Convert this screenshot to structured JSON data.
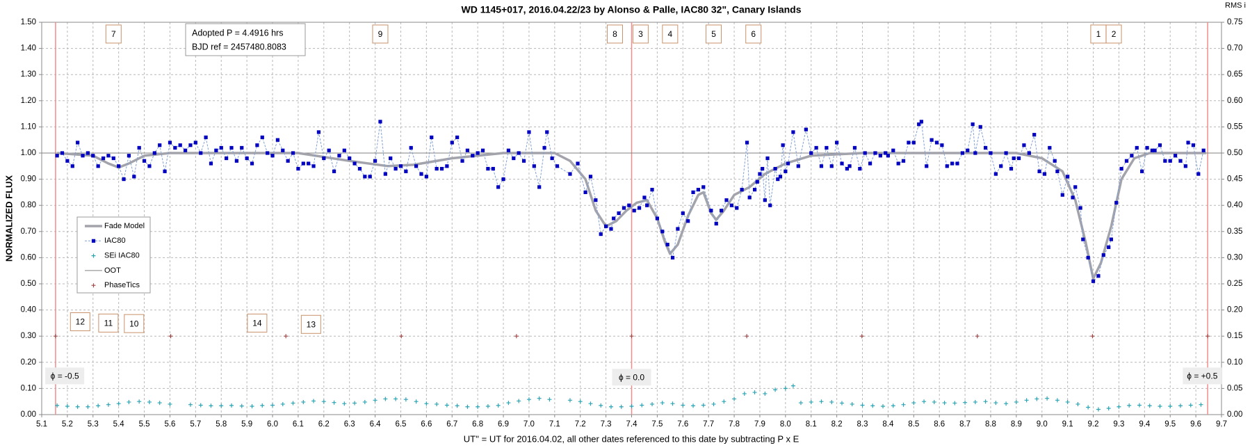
{
  "chart_data": {
    "type": "line",
    "title": "WD 1145+017, 2016.04.22/23 by Alonso & Palle, IAC80 32\", Canary Islands",
    "x_label": "UT'' = UT for 2016.04.02, all other dates referenced to this date by subtracting P x E",
    "y_label": "NORMALIZED FLUX",
    "y2_label": "RMS i",
    "xlim": [
      5.1,
      9.7
    ],
    "xticks": [
      5.1,
      5.2,
      5.3,
      5.4,
      5.5,
      5.6,
      5.7,
      5.8,
      5.9,
      {
        "value": 6,
        "label": "6.0"
      },
      6.1,
      6.2,
      6.3,
      6.4,
      6.5,
      6.6,
      6.7,
      6.8,
      6.9,
      {
        "value": 7,
        "label": "7.0"
      },
      7.1,
      7.2,
      7.3,
      7.4,
      7.5,
      7.6,
      7.7,
      7.8,
      7.9,
      {
        "value": 8,
        "label": "8.0"
      },
      8.1,
      8.2,
      8.3,
      8.4,
      8.5,
      8.6,
      8.7,
      8.8,
      8.9,
      {
        "value": 9,
        "label": "9.0"
      },
      9.1,
      9.2,
      9.3,
      9.4,
      9.5,
      9.6,
      9.7
    ],
    "ylim": [
      0,
      1.5
    ],
    "yticks": [
      {
        "value": 0,
        "label": "0.00"
      },
      {
        "value": 0.1,
        "label": "0.10"
      },
      {
        "value": 0.2,
        "label": "0.20"
      },
      {
        "value": 0.3,
        "label": "0.30"
      },
      {
        "value": 0.4,
        "label": "0.40"
      },
      {
        "value": 0.5,
        "label": "0.50"
      },
      {
        "value": 0.6,
        "label": "0.60"
      },
      {
        "value": 0.7,
        "label": "0.70"
      },
      {
        "value": 0.8,
        "label": "0.80"
      },
      {
        "value": 0.9,
        "label": "0.90"
      },
      {
        "value": 1.0,
        "label": "1.00"
      },
      {
        "value": 1.1,
        "label": "1.10"
      },
      {
        "value": 1.2,
        "label": "1.20"
      },
      {
        "value": 1.3,
        "label": "1.30"
      },
      {
        "value": 1.4,
        "label": "1.40"
      },
      {
        "value": 1.5,
        "label": "1.50"
      }
    ],
    "y2lim": [
      0,
      0.75
    ],
    "y2ticks": [
      {
        "value": 0,
        "label": "0.00"
      },
      0.05,
      {
        "value": 0.1,
        "label": "0.10"
      },
      0.15,
      {
        "value": 0.2,
        "label": "0.20"
      },
      0.25,
      {
        "value": 0.3,
        "label": "0.30"
      },
      0.35,
      {
        "value": 0.4,
        "label": "0.40"
      },
      0.45,
      {
        "value": 0.5,
        "label": "0.50"
      },
      0.55,
      {
        "value": 0.6,
        "label": "0.60"
      },
      0.65,
      {
        "value": 0.7,
        "label": "0.70"
      },
      0.75
    ],
    "grid": true,
    "series": [
      {
        "name": "Fade Model",
        "color": "#a3a3ab",
        "line": "solid",
        "marker": "none",
        "x": [
          5.16,
          5.3,
          5.36,
          5.4,
          5.44,
          5.5,
          5.6,
          6.1,
          6.3,
          6.45,
          6.55,
          6.7,
          6.9,
          7.1,
          7.16,
          7.22,
          7.26,
          7.3,
          7.34,
          7.38,
          7.42,
          7.46,
          7.5,
          7.53,
          7.55,
          7.58,
          7.62,
          7.66,
          7.68,
          7.71,
          7.73,
          7.76,
          7.8,
          7.86,
          7.92,
          8.0,
          8.1,
          8.3,
          8.9,
          9.0,
          9.08,
          9.13,
          9.17,
          9.2,
          9.23,
          9.27,
          9.31,
          9.36,
          9.42,
          9.64
        ],
        "values": [
          1.0,
          0.99,
          0.96,
          0.945,
          0.96,
          0.99,
          1.0,
          1.0,
          0.97,
          0.95,
          0.955,
          0.98,
          1.0,
          1.0,
          0.97,
          0.9,
          0.78,
          0.72,
          0.74,
          0.78,
          0.81,
          0.82,
          0.75,
          0.66,
          0.615,
          0.65,
          0.76,
          0.84,
          0.85,
          0.77,
          0.745,
          0.78,
          0.84,
          0.87,
          0.92,
          0.96,
          0.99,
          1.0,
          1.0,
          0.98,
          0.93,
          0.82,
          0.66,
          0.52,
          0.58,
          0.72,
          0.9,
          0.98,
          1.0,
          1.0
        ]
      },
      {
        "name": "IAC80",
        "color": "#0000c0",
        "line": "dashed",
        "marker": "square",
        "x": [
          5.16,
          5.18,
          5.2,
          5.22,
          5.24,
          5.26,
          5.28,
          5.3,
          5.32,
          5.34,
          5.36,
          5.38,
          5.4,
          5.42,
          5.44,
          5.46,
          5.48,
          5.5,
          5.52,
          5.54,
          5.56,
          5.58,
          5.6,
          5.62,
          5.64,
          5.66,
          5.68,
          5.7,
          5.72,
          5.74,
          5.76,
          5.78,
          5.8,
          5.82,
          5.84,
          5.86,
          5.88,
          5.9,
          5.92,
          5.94,
          5.96,
          5.98,
          6.0,
          6.02,
          6.04,
          6.06,
          6.08,
          6.1,
          6.12,
          6.14,
          6.16,
          6.18,
          6.2,
          6.22,
          6.24,
          6.26,
          6.28,
          6.3,
          6.32,
          6.34,
          6.36,
          6.38,
          6.4,
          6.42,
          6.44,
          6.46,
          6.48,
          6.5,
          6.52,
          6.54,
          6.56,
          6.58,
          6.6,
          6.62,
          6.64,
          6.66,
          6.68,
          6.7,
          6.72,
          6.74,
          6.76,
          6.78,
          6.8,
          6.82,
          6.84,
          6.86,
          6.88,
          6.9,
          6.92,
          6.94,
          6.96,
          6.98,
          7.0,
          7.02,
          7.04,
          7.06,
          7.07,
          7.09,
          7.11,
          7.16,
          7.19,
          7.22,
          7.24,
          7.26,
          7.28,
          7.3,
          7.32,
          7.33,
          7.35,
          7.37,
          7.39,
          7.41,
          7.43,
          7.45,
          7.46,
          7.48,
          7.5,
          7.52,
          7.54,
          7.56,
          7.58,
          7.6,
          7.62,
          7.64,
          7.66,
          7.68,
          7.71,
          7.73,
          7.75,
          7.77,
          7.79,
          7.81,
          7.83,
          7.85,
          7.86,
          7.88,
          7.89,
          7.9,
          7.91,
          7.92,
          7.93,
          7.94,
          7.96,
          7.97,
          7.98,
          7.99,
          8.0,
          8.01,
          8.03,
          8.05,
          8.08,
          8.1,
          8.12,
          8.14,
          8.16,
          8.18,
          8.2,
          8.22,
          8.24,
          8.25,
          8.27,
          8.29,
          8.31,
          8.33,
          8.35,
          8.37,
          8.39,
          8.4,
          8.42,
          8.44,
          8.46,
          8.48,
          8.5,
          8.52,
          8.53,
          8.55,
          8.57,
          8.59,
          8.61,
          8.63,
          8.65,
          8.67,
          8.69,
          8.71,
          8.73,
          8.74,
          8.76,
          8.78,
          8.8,
          8.82,
          8.84,
          8.86,
          8.88,
          8.89,
          8.91,
          8.93,
          8.95,
          8.97,
          8.99,
          9.01,
          9.03,
          9.05,
          9.06,
          9.08,
          9.1,
          9.12,
          9.13,
          9.15,
          9.16,
          9.18,
          9.2,
          9.22,
          9.24,
          9.26,
          9.27,
          9.29,
          9.31,
          9.33,
          9.35,
          9.37,
          9.39,
          9.41,
          9.43,
          9.44,
          9.46,
          9.48,
          9.5,
          9.52,
          9.54,
          9.56,
          9.57,
          9.59,
          9.61,
          9.63
        ],
        "values": [
          0.99,
          1.0,
          0.97,
          0.95,
          1.04,
          0.99,
          1.0,
          0.99,
          0.95,
          0.98,
          0.99,
          0.98,
          0.95,
          0.9,
          0.99,
          0.91,
          1.02,
          0.97,
          0.95,
          1.0,
          1.03,
          0.93,
          1.04,
          1.02,
          1.03,
          1.01,
          1.03,
          1.04,
          1.0,
          1.06,
          0.96,
          1.01,
          1.02,
          0.98,
          1.02,
          0.97,
          1.02,
          0.98,
          0.96,
          1.03,
          1.06,
          1.0,
          0.99,
          1.05,
          1.01,
          0.97,
          1.0,
          0.94,
          0.96,
          0.96,
          0.95,
          1.08,
          0.98,
          1.01,
          0.93,
          0.99,
          1.01,
          0.98,
          0.96,
          0.94,
          0.91,
          0.91,
          0.97,
          1.12,
          0.92,
          0.98,
          0.94,
          0.95,
          0.93,
          1.02,
          0.95,
          0.92,
          0.91,
          1.06,
          0.94,
          0.94,
          0.95,
          1.04,
          1.06,
          0.97,
          1.01,
          0.99,
          1.0,
          1.01,
          0.94,
          0.94,
          0.87,
          0.9,
          1.01,
          0.98,
          1.0,
          0.97,
          1.08,
          0.95,
          0.87,
          1.02,
          1.08,
          0.98,
          0.95,
          0.92,
          0.96,
          0.85,
          0.91,
          0.82,
          0.69,
          0.72,
          0.71,
          0.75,
          0.77,
          0.79,
          0.8,
          0.78,
          0.79,
          0.83,
          0.8,
          0.86,
          0.75,
          0.7,
          0.65,
          0.6,
          0.71,
          0.77,
          0.74,
          0.85,
          0.86,
          0.87,
          0.78,
          0.73,
          0.78,
          0.82,
          0.8,
          0.79,
          0.86,
          1.04,
          0.83,
          0.86,
          0.89,
          0.92,
          0.94,
          0.82,
          0.98,
          0.8,
          0.94,
          0.9,
          0.91,
          1.03,
          0.93,
          0.96,
          1.08,
          0.95,
          1.09,
          1.0,
          1.02,
          0.95,
          1.02,
          0.95,
          1.04,
          0.96,
          0.94,
          0.95,
          1.02,
          0.94,
          1.0,
          0.96,
          1.0,
          0.99,
          1.0,
          0.99,
          1.01,
          0.96,
          0.97,
          1.04,
          1.04,
          1.11,
          1.12,
          0.95,
          1.05,
          1.04,
          1.03,
          0.95,
          0.96,
          0.96,
          1.0,
          1.01,
          1.11,
          1.0,
          1.1,
          1.02,
          1.0,
          0.92,
          0.95,
          1.0,
          0.94,
          0.98,
          0.98,
          1.03,
          1.0,
          1.07,
          0.93,
          0.92,
          1.02,
          0.97,
          0.93,
          0.84,
          0.91,
          0.83,
          0.87,
          0.79,
          0.67,
          0.6,
          0.51,
          0.53,
          0.61,
          0.64,
          0.67,
          0.81,
          0.94,
          0.97,
          0.99,
          1.02,
          0.93,
          1.02,
          1.01,
          1.01,
          1.03,
          0.97,
          0.97,
          0.99,
          0.97,
          0.95,
          1.04,
          1.03,
          0.92,
          1.01
        ]
      },
      {
        "name": "SEi IAC80",
        "color": "#2ba3b3",
        "line": "none",
        "marker": "plus",
        "x": [
          5.16,
          5.2,
          5.24,
          5.28,
          5.32,
          5.36,
          5.4,
          5.44,
          5.48,
          5.52,
          5.56,
          5.6,
          5.68,
          5.72,
          5.76,
          5.8,
          5.84,
          5.88,
          5.92,
          5.96,
          6.0,
          6.04,
          6.08,
          6.12,
          6.16,
          6.2,
          6.24,
          6.28,
          6.32,
          6.36,
          6.4,
          6.44,
          6.48,
          6.52,
          6.56,
          6.6,
          6.64,
          6.68,
          6.72,
          6.76,
          6.8,
          6.84,
          6.88,
          6.92,
          6.96,
          7.0,
          7.04,
          7.08,
          7.16,
          7.2,
          7.24,
          7.28,
          7.32,
          7.36,
          7.4,
          7.44,
          7.48,
          7.52,
          7.56,
          7.6,
          7.64,
          7.68,
          7.72,
          7.76,
          7.8,
          7.84,
          7.88,
          7.92,
          7.96,
          8.0,
          8.03,
          8.06,
          8.1,
          8.14,
          8.18,
          8.22,
          8.26,
          8.3,
          8.34,
          8.38,
          8.42,
          8.46,
          8.5,
          8.54,
          8.58,
          8.62,
          8.66,
          8.7,
          8.74,
          8.78,
          8.82,
          8.86,
          8.9,
          8.94,
          8.98,
          9.02,
          9.06,
          9.1,
          9.14,
          9.18,
          9.22,
          9.26,
          9.3,
          9.34,
          9.38,
          9.42,
          9.46,
          9.5,
          9.54,
          9.58,
          9.62
        ],
        "values": [
          0.035,
          0.032,
          0.03,
          0.03,
          0.034,
          0.038,
          0.042,
          0.048,
          0.05,
          0.048,
          0.045,
          0.04,
          0.038,
          0.036,
          0.034,
          0.034,
          0.035,
          0.033,
          0.032,
          0.035,
          0.036,
          0.04,
          0.044,
          0.048,
          0.052,
          0.05,
          0.046,
          0.042,
          0.044,
          0.048,
          0.055,
          0.06,
          0.06,
          0.058,
          0.05,
          0.042,
          0.04,
          0.036,
          0.034,
          0.03,
          0.03,
          0.032,
          0.035,
          0.045,
          0.052,
          0.058,
          0.062,
          0.058,
          0.055,
          0.05,
          0.042,
          0.035,
          0.03,
          0.03,
          0.032,
          0.036,
          0.04,
          0.045,
          0.042,
          0.036,
          0.034,
          0.036,
          0.04,
          0.05,
          0.06,
          0.08,
          0.085,
          0.08,
          0.095,
          0.1,
          0.11,
          0.045,
          0.048,
          0.05,
          0.048,
          0.044,
          0.04,
          0.036,
          0.034,
          0.032,
          0.034,
          0.038,
          0.045,
          0.05,
          0.048,
          0.045,
          0.044,
          0.046,
          0.048,
          0.05,
          0.045,
          0.042,
          0.048,
          0.055,
          0.06,
          0.062,
          0.055,
          0.048,
          0.04,
          0.028,
          0.02,
          0.024,
          0.03,
          0.035,
          0.036,
          0.034,
          0.032,
          0.032,
          0.034,
          0.036,
          0.038
        ]
      },
      {
        "name": "OOT",
        "color": "#808080",
        "line": "solid",
        "marker": "none",
        "x": [
          5.1,
          9.7
        ],
        "values": [
          1.0,
          1.0
        ]
      },
      {
        "name": "PhaseTics",
        "color": "#a04848",
        "line": "none",
        "marker": "plus",
        "x": [
          5.154,
          5.603,
          6.052,
          6.502,
          6.951,
          7.4,
          7.849,
          8.298,
          8.748,
          9.197,
          9.646
        ],
        "values": [
          0.3,
          0.3,
          0.3,
          0.3,
          0.3,
          0.3,
          0.3,
          0.3,
          0.3,
          0.3,
          0.3
        ]
      }
    ],
    "vlines": [
      5.154,
      7.4,
      9.646
    ],
    "vline_color": "#f08c8c",
    "annotations": [
      "7",
      "9",
      "8",
      "3",
      "4",
      "5",
      "6",
      "1",
      "2",
      "12",
      "11",
      "10",
      "14",
      "13"
    ],
    "phase_labels": [
      "ϕ = -0.5",
      "ϕ = 0.0",
      "ϕ = +0.5"
    ],
    "info": [
      "Adopted P = 4.4916 hrs",
      "BJD ref = 2457480.8083"
    ]
  }
}
